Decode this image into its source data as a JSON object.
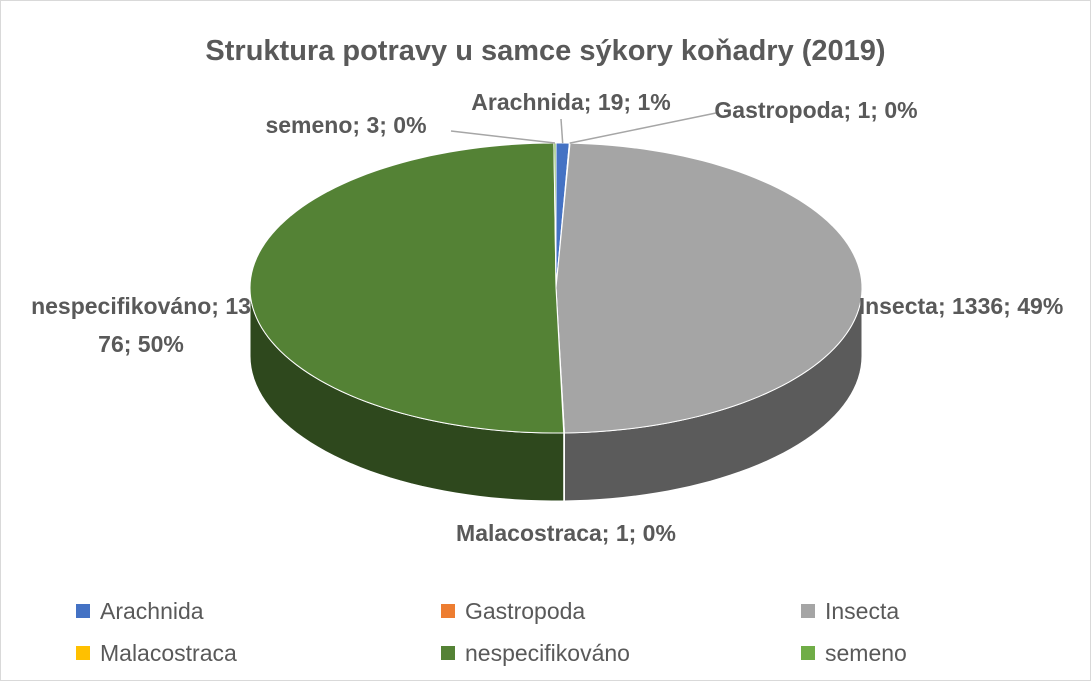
{
  "chart_data": {
    "type": "pie3d",
    "title": "Struktura potravy u samce sýkory koňadry (2019)",
    "categories": [
      "Arachnida",
      "Gastropoda",
      "Insecta",
      "Malacostraca",
      "nespecifikováno",
      "semeno"
    ],
    "values": [
      19,
      1,
      1336,
      1,
      1376,
      3
    ],
    "value_labels": [
      "Arachnida; 19; 1%",
      "Gastropoda; 1; 0%",
      "Insecta; 1336; 49%",
      "Malacostraca; 1; 0%",
      "nespecifikováno; 1376; 50%",
      "semeno; 3; 0%"
    ],
    "colors": [
      "#4472c4",
      "#ed7d31",
      "#a5a5a5",
      "#ffc000",
      "#548235",
      "#70ad47"
    ],
    "legend": "bottom"
  }
}
